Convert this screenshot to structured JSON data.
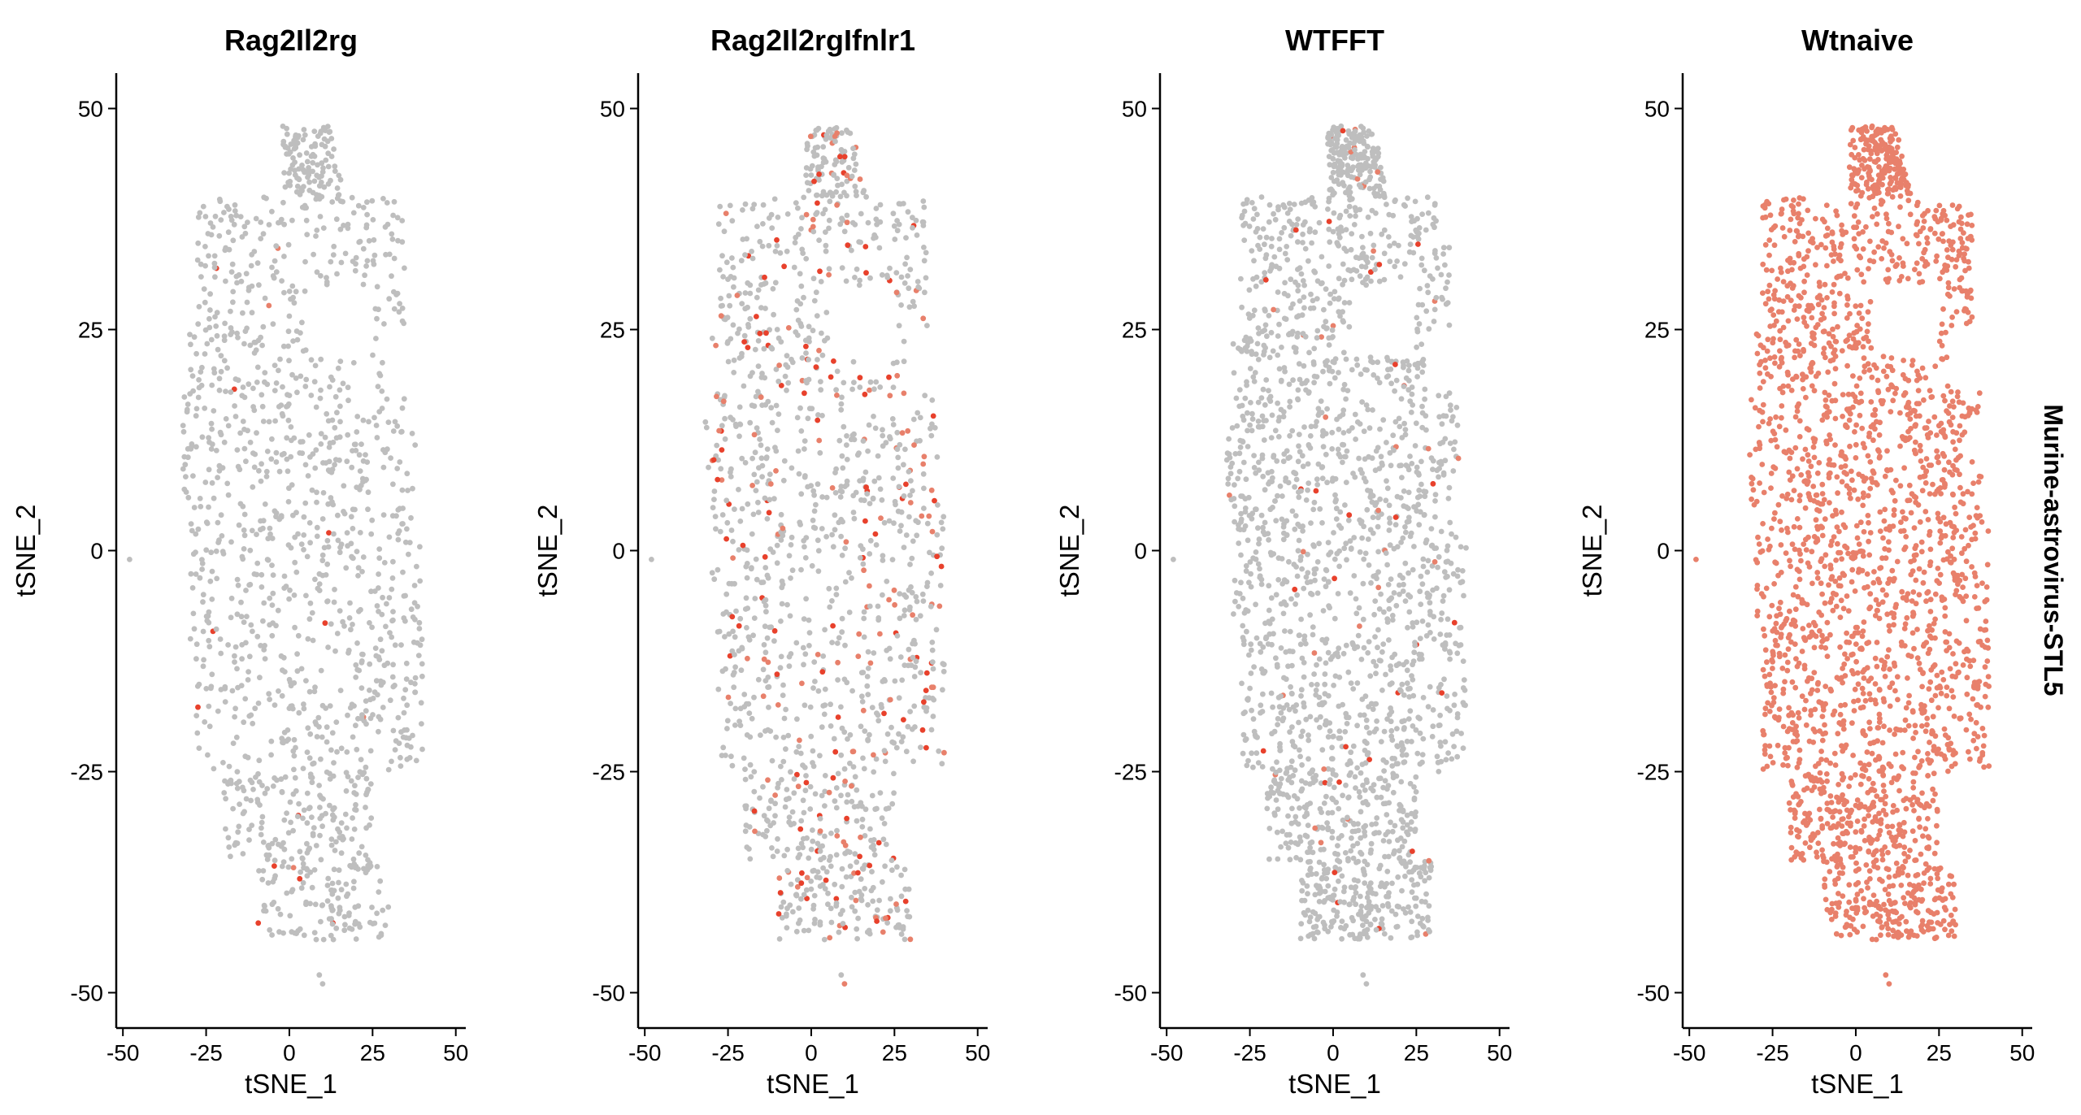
{
  "chart_data": {
    "type": "scatter",
    "facet_strip_label": "Murine-astrovirus-STL5",
    "xlabel": "tSNE_1",
    "ylabel": "tSNE_2",
    "xlim": [
      -52,
      53
    ],
    "ylim": [
      -54,
      54
    ],
    "x_ticks": [
      "-50",
      "-25",
      "0",
      "25",
      "50"
    ],
    "y_ticks": [
      "-50",
      "-25",
      "0",
      "25",
      "50"
    ],
    "grid": false,
    "legend": "none",
    "colors": {
      "low": "#bebebe",
      "high": "#e8806b",
      "peak": "#e8412c"
    },
    "panels": [
      {
        "title": "Rag2Il2rg",
        "density": 0.55,
        "expressing_fraction": 0.01
      },
      {
        "title": "Rag2Il2rgIfnlr1",
        "density": 0.55,
        "expressing_fraction": 0.16
      },
      {
        "title": "WTFFT",
        "density": 0.85,
        "expressing_fraction": 0.03
      },
      {
        "title": "Wtnaive",
        "density": 0.95,
        "expressing_fraction": 1.0
      }
    ],
    "outliers": [
      {
        "x": -48,
        "y": -1
      },
      {
        "x": 9,
        "y": -48
      },
      {
        "x": 10,
        "y": -49
      },
      {
        "x": 5,
        "y": -40
      }
    ]
  }
}
